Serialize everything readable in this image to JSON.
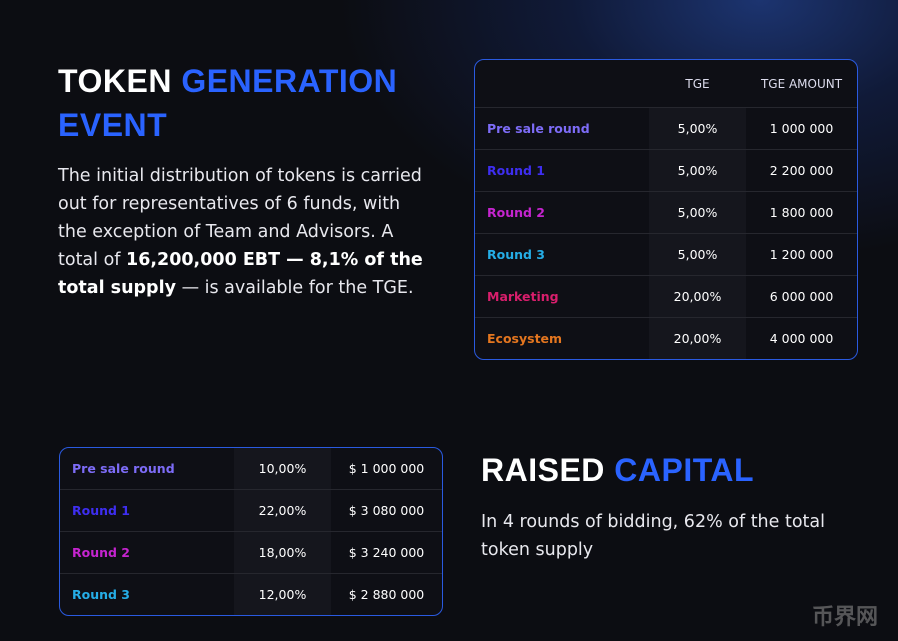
{
  "tge": {
    "title": {
      "part1": "TOKEN",
      "part2": "GENERATION EVENT"
    },
    "paragraph": {
      "text1": "The initial distribution of tokens is carried out for representatives of 6 funds, with the exception of Team and Advisors. A total of",
      "bold": "16,200,000 EBT — 8,1% of the total supply",
      "text2": "— is available for the TGE."
    },
    "table": {
      "header": [
        "TGE",
        "TGE AMOUNT"
      ],
      "rows": [
        [
          "Pre sale round",
          "5,00%",
          "1 000 000"
        ],
        [
          "Round 1",
          "5,00%",
          "2 200 000"
        ],
        [
          "Round 2",
          "5,00%",
          "1 800 000"
        ],
        [
          "Round 3",
          "5,00%",
          "1 200 000"
        ],
        [
          "Marketing",
          "20,00%",
          "6 000 000"
        ],
        [
          "Ecosystem",
          "20,00%",
          "4 000 000"
        ]
      ]
    }
  },
  "raised": {
    "title": {
      "part1": "RAISED",
      "part2": "CAPITAL"
    },
    "paragraph": "In 4 rounds of bidding, 62% of the total token supply",
    "table": {
      "rows": [
        [
          "Pre sale round",
          "10,00%",
          "$ 1 000 000"
        ],
        [
          "Round 1",
          "22,00%",
          "$ 3 080 000"
        ],
        [
          "Round 2",
          "18,00%",
          "$ 3 240 000"
        ],
        [
          "Round 3",
          "12,00%",
          "$ 2 880 000"
        ]
      ]
    }
  },
  "watermark": "币界网"
}
